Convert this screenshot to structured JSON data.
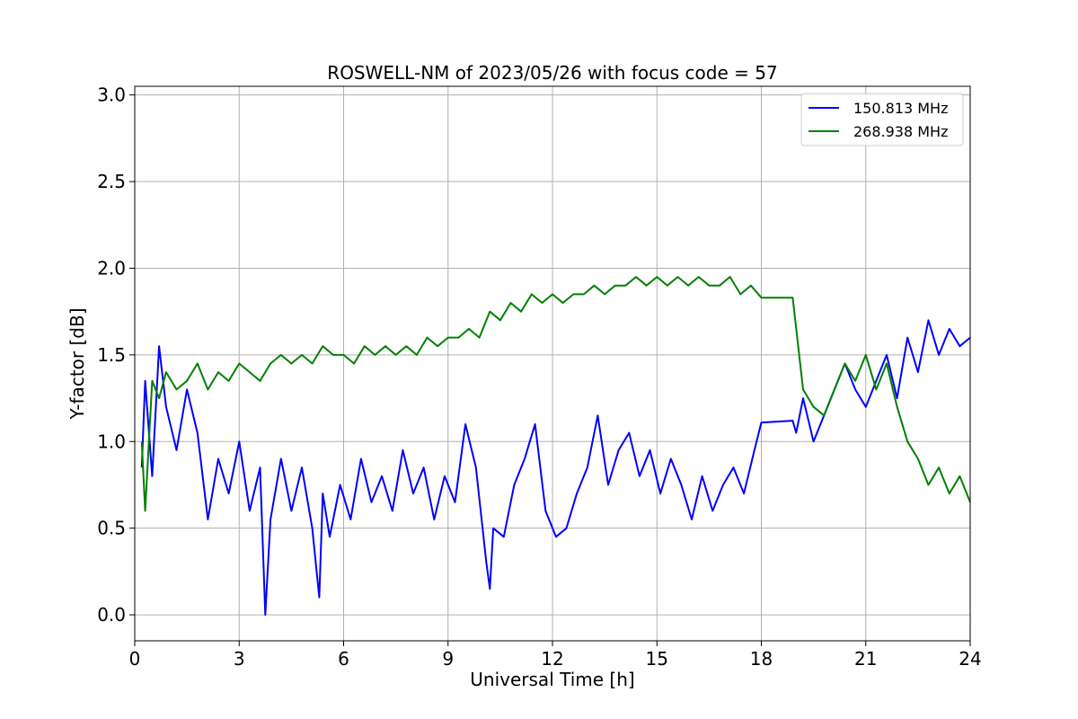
{
  "chart_data": {
    "type": "line",
    "title": "ROSWELL-NM of 2023/05/26 with focus code = 57",
    "xlabel": "Universal Time [h]",
    "ylabel": "Y-factor [dB]",
    "xlim": [
      0,
      24
    ],
    "ylim": [
      -0.15,
      3.05
    ],
    "xticks": [
      0,
      3,
      6,
      9,
      12,
      15,
      18,
      21,
      24
    ],
    "xtick_labels": [
      "0",
      "3",
      "6",
      "9",
      "12",
      "15",
      "18",
      "21",
      "24"
    ],
    "yticks": [
      0.0,
      0.5,
      1.0,
      1.5,
      2.0,
      2.5,
      3.0
    ],
    "ytick_labels": [
      "0.0",
      "0.5",
      "1.0",
      "1.5",
      "2.0",
      "2.5",
      "3.0"
    ],
    "grid": true,
    "legend_position": "top-right",
    "series": [
      {
        "name": "150.813 MHz",
        "color": "#0000ff",
        "x": [
          0.2,
          0.3,
          0.5,
          0.7,
          0.9,
          1.2,
          1.5,
          1.8,
          2.1,
          2.4,
          2.7,
          3.0,
          3.3,
          3.6,
          3.75,
          3.9,
          4.2,
          4.5,
          4.8,
          5.1,
          5.3,
          5.4,
          5.6,
          5.9,
          6.2,
          6.5,
          6.8,
          7.1,
          7.4,
          7.7,
          8.0,
          8.3,
          8.6,
          8.9,
          9.2,
          9.5,
          9.8,
          10.1,
          10.2,
          10.3,
          10.6,
          10.9,
          11.2,
          11.5,
          11.8,
          12.1,
          12.4,
          12.7,
          13.0,
          13.3,
          13.6,
          13.9,
          14.2,
          14.5,
          14.8,
          15.1,
          15.4,
          15.7,
          16.0,
          16.3,
          16.6,
          16.9,
          17.2,
          17.5,
          17.8,
          18.0,
          18.9,
          19.0,
          19.2,
          19.5,
          19.8,
          20.1,
          20.4,
          20.7,
          21.0,
          21.3,
          21.6,
          21.9,
          22.2,
          22.5,
          22.8,
          23.1,
          23.4,
          23.7,
          24.0
        ],
        "y": [
          0.85,
          1.35,
          0.8,
          1.55,
          1.2,
          0.95,
          1.3,
          1.05,
          0.55,
          0.9,
          0.7,
          1.0,
          0.6,
          0.85,
          0.0,
          0.55,
          0.9,
          0.6,
          0.85,
          0.5,
          0.1,
          0.7,
          0.45,
          0.75,
          0.55,
          0.9,
          0.65,
          0.8,
          0.6,
          0.95,
          0.7,
          0.85,
          0.55,
          0.8,
          0.65,
          1.1,
          0.85,
          0.3,
          0.15,
          0.5,
          0.45,
          0.75,
          0.9,
          1.1,
          0.6,
          0.45,
          0.5,
          0.7,
          0.85,
          1.15,
          0.75,
          0.95,
          1.05,
          0.8,
          0.95,
          0.7,
          0.9,
          0.75,
          0.55,
          0.8,
          0.6,
          0.75,
          0.85,
          0.7,
          0.95,
          1.11,
          1.12,
          1.05,
          1.25,
          1.0,
          1.15,
          1.3,
          1.45,
          1.3,
          1.2,
          1.35,
          1.5,
          1.25,
          1.6,
          1.4,
          1.7,
          1.5,
          1.65,
          1.55,
          1.6
        ]
      },
      {
        "name": "268.938 MHz",
        "color": "#008000",
        "x": [
          0.2,
          0.3,
          0.5,
          0.7,
          0.9,
          1.2,
          1.5,
          1.8,
          2.1,
          2.4,
          2.7,
          3.0,
          3.3,
          3.6,
          3.9,
          4.2,
          4.5,
          4.8,
          5.1,
          5.4,
          5.7,
          6.0,
          6.3,
          6.6,
          6.9,
          7.2,
          7.5,
          7.8,
          8.1,
          8.4,
          8.7,
          9.0,
          9.3,
          9.6,
          9.9,
          10.2,
          10.5,
          10.8,
          11.1,
          11.4,
          11.7,
          12.0,
          12.3,
          12.6,
          12.9,
          13.2,
          13.5,
          13.8,
          14.1,
          14.4,
          14.7,
          15.0,
          15.3,
          15.6,
          15.9,
          16.2,
          16.5,
          16.8,
          17.1,
          17.4,
          17.7,
          18.0,
          18.9,
          19.2,
          19.5,
          19.8,
          20.1,
          20.4,
          20.7,
          21.0,
          21.3,
          21.6,
          21.9,
          22.2,
          22.5,
          22.8,
          23.1,
          23.4,
          23.7,
          24.0
        ],
        "y": [
          1.0,
          0.6,
          1.35,
          1.25,
          1.4,
          1.3,
          1.35,
          1.45,
          1.3,
          1.4,
          1.35,
          1.45,
          1.4,
          1.35,
          1.45,
          1.5,
          1.45,
          1.5,
          1.45,
          1.55,
          1.5,
          1.5,
          1.45,
          1.55,
          1.5,
          1.55,
          1.5,
          1.55,
          1.5,
          1.6,
          1.55,
          1.6,
          1.6,
          1.65,
          1.6,
          1.75,
          1.7,
          1.8,
          1.75,
          1.85,
          1.8,
          1.85,
          1.8,
          1.85,
          1.85,
          1.9,
          1.85,
          1.9,
          1.9,
          1.95,
          1.9,
          1.95,
          1.9,
          1.95,
          1.9,
          1.95,
          1.9,
          1.9,
          1.95,
          1.85,
          1.9,
          1.83,
          1.83,
          1.3,
          1.2,
          1.15,
          1.3,
          1.45,
          1.35,
          1.5,
          1.3,
          1.45,
          1.2,
          1.0,
          0.9,
          0.75,
          0.85,
          0.7,
          0.8,
          0.65
        ]
      }
    ]
  }
}
